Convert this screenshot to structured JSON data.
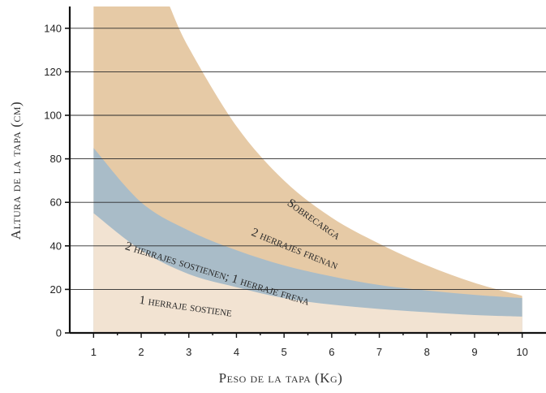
{
  "chart_data": {
    "type": "area",
    "xlabel": "Peso de la tapa (Kg)",
    "ylabel": "Altura de la tapa (cm)",
    "xlim": [
      0.5,
      10.5
    ],
    "ylim": [
      0,
      150
    ],
    "x_ticks": [
      1,
      2,
      3,
      4,
      5,
      6,
      7,
      8,
      9,
      10
    ],
    "y_ticks": [
      0,
      20,
      40,
      60,
      80,
      100,
      120,
      140
    ],
    "grid": "horizontal",
    "x_range": [
      1,
      10
    ],
    "boundaries": {
      "lower": {
        "x": [
          1,
          2,
          3,
          4,
          5,
          6,
          7,
          8,
          9,
          10
        ],
        "y": [
          55,
          38,
          27,
          21,
          16,
          13,
          11,
          9.5,
          8.2,
          7.5
        ]
      },
      "middle": {
        "x": [
          1,
          2,
          3,
          4,
          5,
          6,
          7,
          8,
          9,
          10
        ],
        "y": [
          85,
          60,
          47,
          38,
          31,
          26,
          22,
          19.5,
          17.5,
          16
        ]
      },
      "upper": {
        "x": [
          2.6,
          3,
          4,
          5,
          6,
          7,
          8,
          9,
          10
        ],
        "y": [
          150,
          131,
          95,
          70,
          53,
          41,
          31,
          23,
          17
        ]
      }
    },
    "regions": [
      {
        "label": "1 herraje sostiene",
        "color": "#f2e3d2"
      },
      {
        "label": "2 herrajes sostienen; 1 herraje frena",
        "color": "#a9bcc8"
      },
      {
        "label": "2 herrajes frenan",
        "color": "#e6caa6"
      },
      {
        "label": "Sobrecarga",
        "color": "#ffffff"
      }
    ],
    "label_positions": [
      {
        "x": 1.95,
        "y": 13.5,
        "angle": 8
      },
      {
        "x": 1.65,
        "y": 38.5,
        "angle": 17
      },
      {
        "x": 4.3,
        "y": 45,
        "angle": 22
      },
      {
        "x": 5.05,
        "y": 59,
        "angle": 35
      }
    ]
  }
}
